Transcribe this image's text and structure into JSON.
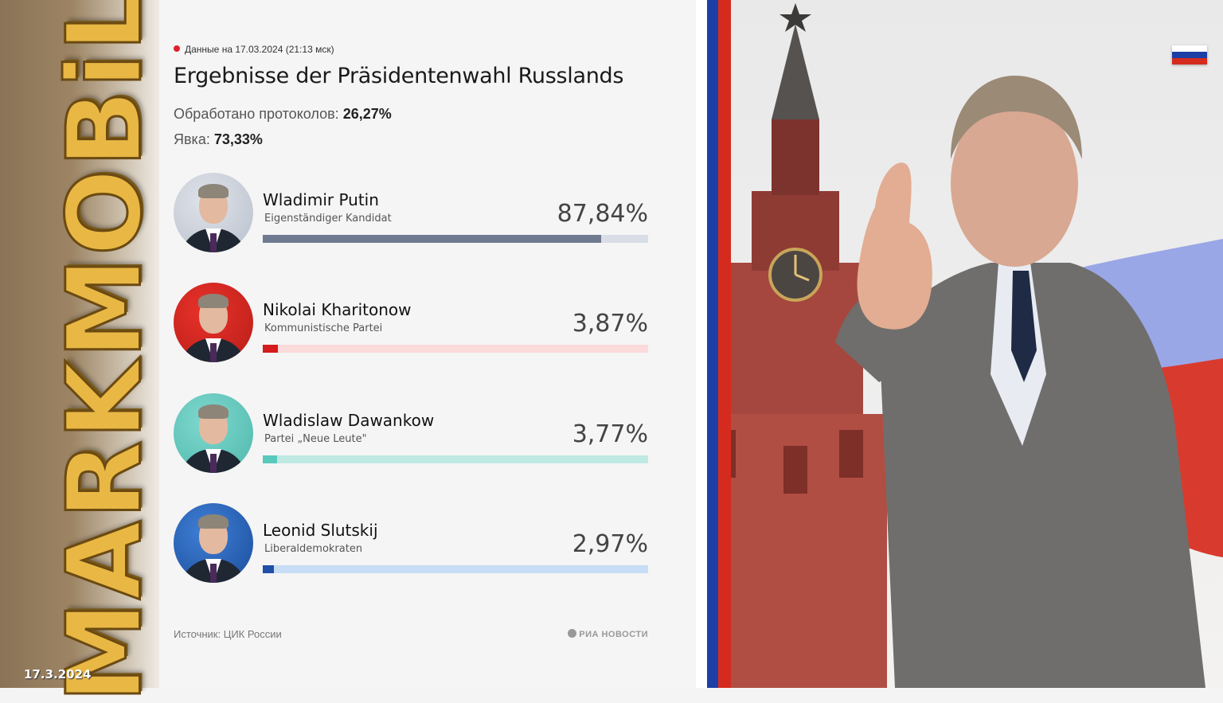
{
  "brand": {
    "wordmark": "MARKMOBiL",
    "date": "17.3.2024"
  },
  "header": {
    "data_stamp": "Данные на 17.03.2024 (21:13 мск)",
    "title": "Ergebnisse der Präsidentenwahl Russlands",
    "protocols_label": "Обработано протоколов:",
    "protocols_value": "26,27%",
    "turnout_label": "Явка:",
    "turnout_value": "73,33%"
  },
  "candidates": [
    {
      "name": "Wladimir Putin",
      "party": "Eigenständiger Kandidat",
      "percent_label": "87,84%",
      "percent": 87.84,
      "bar_color": "#6f7a90",
      "track_color": "#d9dde6",
      "photo_bg": "#dfe3ea",
      "photo_bg2": "#b9c0cc"
    },
    {
      "name": "Nikolai Kharitonow",
      "party": "Kommunistische Partei",
      "percent_label": "3,87%",
      "percent": 3.87,
      "bar_color": "#d51b1b",
      "track_color": "#fbdada",
      "photo_bg": "#e8322a",
      "photo_bg2": "#b81d18"
    },
    {
      "name": "Wladislaw Dawankow",
      "party": "Partei „Neue Leute\"",
      "percent_label": "3,77%",
      "percent": 3.77,
      "bar_color": "#58c9bd",
      "track_color": "#bfe9e3",
      "photo_bg": "#7fd8cd",
      "photo_bg2": "#4fb8ad"
    },
    {
      "name": "Leonid Slutskij",
      "party": "Liberaldemokraten",
      "percent_label": "2,97%",
      "percent": 2.97,
      "bar_color": "#1f4fa8",
      "track_color": "#c8ddf6",
      "photo_bg": "#3f7fd6",
      "photo_bg2": "#1b4d9b"
    }
  ],
  "footer": {
    "source": "Источник: ЦИК России",
    "agency": "РИА НОВОСТИ"
  },
  "colors": {
    "flag_white": "#ffffff",
    "flag_blue": "#1c3fa6",
    "flag_red": "#d52b1e"
  }
}
